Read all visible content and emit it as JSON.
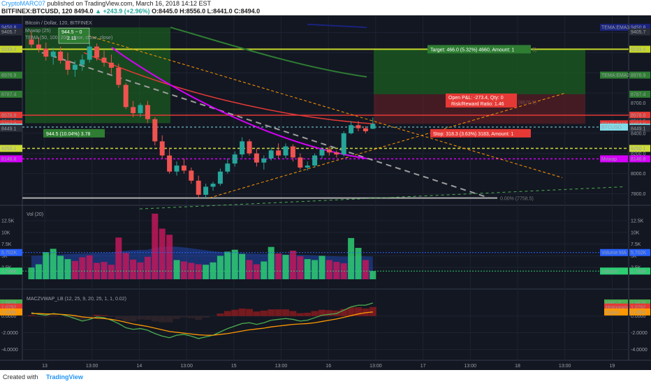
{
  "header": {
    "author": "CryptoMARC07",
    "published": " published on TradingView.com, March 16, 2018 14:12 EST",
    "symbol": "BITFINEX:BTCUSD, 120",
    "last": "8494.0",
    "change": "▲ +243.9 (+2.96%)",
    "ohlc": "O:8445.0 H:8556.0 L:8441.0 C:8494.0"
  },
  "footer": {
    "created": "Created with",
    "brand": "TradingView"
  },
  "price_pane": {
    "title": "Bitcoin / Dollar, 120, BITFINEX",
    "indicator1": "Mvwap (25)",
    "indicator2": "TEMA (50, 100, 200, close, close, close)",
    "measure_top": "944.5 − 0",
    "measure_top_sub": "2.11",
    "measure_bottom": "944.5 (10.04%) 3.78",
    "target_label": "Target: 466.0 (5.32%) 4660, Amount: 1",
    "target_tail": "5)",
    "open_pnl": "Open P&L: -273.4, Qty: 0",
    "risk_reward": "Risk/Reward Ratio: 1.46",
    "stop_label": "Stop: 318.3 (3.63%) 3183, Amount: 1",
    "fib_label": "0.00% (7758.5)",
    "faint_label": "(8676.5)"
  },
  "vol_pane": {
    "title": "Vol (20)"
  },
  "macz_pane": {
    "title": "MACZVWAP_LB (12, 25, 9, 20, 25, 1, 1, 0.02)"
  },
  "right_labels": {
    "tema3": "TEMA:EMA3",
    "tema2": "TEMA:EMA2",
    "tema1": "TEMA:EMA",
    "btcusd": "BTCUSD",
    "mvwap": "Mvwap",
    "volume_ma": "Volume MA",
    "volume": "Volume",
    "macz": "MAC-Z",
    "hist": "Histogram",
    "signal": "Signal"
  },
  "colors": {
    "background": "#131722",
    "up": "#26a69a",
    "down": "#ef5350",
    "target_zone": "#1b5e20",
    "stop_zone": "#6d1f25",
    "mvwap": "#d500f9",
    "tema1": "#e53935",
    "tema2": "#2e7d32",
    "tema3": "#1a237e",
    "vol_up": "#2ecc71",
    "vol_down": "#c2185b",
    "vol_ma": "#2962ff"
  },
  "chart_data": [
    {
      "type": "candlestick",
      "title": "Bitcoin / Dollar, 120, BITFINEX",
      "xlabel": "",
      "ylabel": "",
      "x_ticks": [
        "13",
        "13:00",
        "14",
        "13:00",
        "15",
        "13:00",
        "16",
        "13:00",
        "17",
        "13:00",
        "18",
        "13:00",
        "19"
      ],
      "y_ticks": [
        7800,
        8000,
        8200,
        8400,
        8600,
        8800,
        9000,
        9200,
        9400
      ],
      "ylim": [
        7700,
        9500
      ],
      "price_labels": [
        "9450.8",
        "9405.7",
        "9233.4",
        "8976.9",
        "8787.4",
        "8700.0",
        "8578.8",
        "8516.5",
        "8494.0",
        "8461.2",
        "8449.1",
        "8400.0",
        "8250.1",
        "8200.0",
        "8146.8",
        "8000.0",
        "7800.0"
      ],
      "candles": [
        [
          9330,
          9410,
          9250,
          9280
        ],
        [
          9280,
          9350,
          9200,
          9240
        ],
        [
          9240,
          9300,
          9120,
          9160
        ],
        [
          9160,
          9250,
          9080,
          9210
        ],
        [
          9210,
          9260,
          9090,
          9120
        ],
        [
          9120,
          9200,
          8980,
          9030
        ],
        [
          9030,
          9120,
          8960,
          9080
        ],
        [
          9080,
          9180,
          9020,
          9130
        ],
        [
          9130,
          9300,
          9100,
          9260
        ],
        [
          9260,
          9290,
          9120,
          9150
        ],
        [
          9150,
          9220,
          9060,
          9100
        ],
        [
          9100,
          9180,
          8990,
          9050
        ],
        [
          9050,
          9090,
          8850,
          8880
        ],
        [
          8880,
          8900,
          8640,
          8660
        ],
        [
          8660,
          8720,
          8560,
          8600
        ],
        [
          8600,
          8700,
          8560,
          8680
        ],
        [
          8680,
          8720,
          8500,
          8540
        ],
        [
          8540,
          8560,
          8280,
          8320
        ],
        [
          8320,
          8380,
          8150,
          8180
        ],
        [
          8180,
          8250,
          8000,
          8020
        ],
        [
          8020,
          8120,
          7980,
          8080
        ],
        [
          8080,
          8150,
          8000,
          8030
        ],
        [
          8030,
          8060,
          7900,
          7930
        ],
        [
          7930,
          7980,
          7760,
          7790
        ],
        [
          7790,
          7900,
          7760,
          7870
        ],
        [
          7870,
          7920,
          7830,
          7900
        ],
        [
          7900,
          8050,
          7880,
          8020
        ],
        [
          8020,
          8150,
          8000,
          8100
        ],
        [
          8100,
          8220,
          8070,
          8190
        ],
        [
          8190,
          8360,
          8160,
          8320
        ],
        [
          8320,
          8340,
          8180,
          8200
        ],
        [
          8200,
          8250,
          8070,
          8110
        ],
        [
          8110,
          8180,
          8040,
          8150
        ],
        [
          8150,
          8260,
          8130,
          8230
        ],
        [
          8230,
          8300,
          8150,
          8180
        ],
        [
          8180,
          8300,
          8150,
          8270
        ],
        [
          8270,
          8290,
          8120,
          8160
        ],
        [
          8160,
          8200,
          8040,
          8060
        ],
        [
          8060,
          8120,
          8030,
          8080
        ],
        [
          8080,
          8200,
          8060,
          8180
        ],
        [
          8180,
          8260,
          8150,
          8240
        ],
        [
          8240,
          8270,
          8180,
          8210
        ],
        [
          8210,
          8230,
          8160,
          8190
        ],
        [
          8190,
          8420,
          8170,
          8400
        ],
        [
          8400,
          8520,
          8390,
          8480
        ],
        [
          8480,
          8520,
          8420,
          8450
        ],
        [
          8450,
          8470,
          8400,
          8420
        ],
        [
          8445,
          8556,
          8441,
          8494
        ]
      ]
    },
    {
      "type": "bar",
      "title": "Vol (20)",
      "y_ticks": [
        "2.5K",
        "5K",
        "7.5K",
        "10K",
        "12.5K"
      ],
      "ylim": [
        0,
        14000
      ],
      "price_labels": [
        "5.702K",
        "1.748K"
      ],
      "values": [
        2500,
        3200,
        5800,
        6500,
        5000,
        4300,
        3900,
        4700,
        5100,
        3500,
        3700,
        3100,
        8900,
        5600,
        4200,
        3600,
        4800,
        14000,
        10800,
        9500,
        4100,
        3800,
        3500,
        3200,
        3100,
        3600,
        5000,
        5900,
        6300,
        5400,
        4100,
        3200,
        3800,
        6900,
        5500,
        5200,
        6100,
        4900,
        4300,
        4100,
        5000,
        4100,
        3700,
        3400,
        8800,
        6700,
        4100,
        1748
      ],
      "up": [
        true,
        true,
        true,
        true,
        true,
        true,
        false,
        false,
        false,
        false,
        false,
        false,
        false,
        false,
        false,
        false,
        false,
        false,
        false,
        false,
        true,
        false,
        false,
        false,
        true,
        true,
        true,
        true,
        true,
        true,
        false,
        false,
        true,
        true,
        false,
        true,
        false,
        false,
        true,
        true,
        true,
        false,
        false,
        false,
        true,
        true,
        false,
        true
      ],
      "ma": [
        5000,
        5050,
        5100,
        5200,
        5300,
        5400,
        5450,
        5500,
        5550,
        5600,
        5650,
        5700,
        5900,
        6100,
        6200,
        6250,
        6300,
        6700,
        6900,
        7000,
        6950,
        6800,
        6600,
        6400,
        6200,
        6000,
        5850,
        5750,
        5650,
        5550,
        5500,
        5450,
        5400,
        5400,
        5350,
        5300,
        5250,
        5200,
        5150,
        5100,
        5000,
        4950,
        4900,
        4850,
        4900,
        4950,
        4900,
        4850
      ]
    },
    {
      "type": "line",
      "title": "MACZVWAP_LB (12, 25, 9, 20, 25, 1, 1, 0.02)",
      "y_ticks": [
        -4.0,
        -2.0,
        0.0
      ],
      "ylim": [
        -4.8,
        2.4
      ],
      "price_labels": [
        "1.5676",
        "1.0792",
        "0.4884"
      ],
      "series": [
        {
          "name": "MAC-Z",
          "values": [
            0.4,
            0.2,
            0.1,
            0.3,
            0.2,
            0.0,
            -0.3,
            -0.6,
            -0.4,
            -0.1,
            -0.2,
            -0.5,
            -0.9,
            -1.4,
            -1.6,
            -1.5,
            -1.7,
            -2.1,
            -2.4,
            -2.6,
            -2.3,
            -2.2,
            -2.4,
            -2.7,
            -2.5,
            -2.3,
            -1.9,
            -1.5,
            -1.2,
            -0.9,
            -0.8,
            -1.0,
            -0.8,
            -0.5,
            -0.4,
            -0.3,
            -0.4,
            -0.6,
            -0.5,
            -0.2,
            0.1,
            0.2,
            0.3,
            0.7,
            1.1,
            1.3,
            1.3,
            1.5676
          ]
        },
        {
          "name": "Signal",
          "values": [
            0.3,
            0.3,
            0.25,
            0.25,
            0.2,
            0.15,
            0.05,
            -0.1,
            -0.2,
            -0.25,
            -0.3,
            -0.4,
            -0.55,
            -0.75,
            -0.95,
            -1.1,
            -1.25,
            -1.45,
            -1.65,
            -1.85,
            -1.95,
            -2.05,
            -2.15,
            -2.25,
            -2.3,
            -2.3,
            -2.2,
            -2.1,
            -1.95,
            -1.8,
            -1.65,
            -1.55,
            -1.45,
            -1.3,
            -1.2,
            -1.1,
            -1.0,
            -0.95,
            -0.9,
            -0.8,
            -0.65,
            -0.5,
            -0.35,
            -0.15,
            0.05,
            0.25,
            0.4,
            0.4884
          ]
        },
        {
          "name": "Histogram",
          "values": [
            0.1,
            -0.1,
            -0.15,
            0.05,
            0.0,
            -0.15,
            -0.35,
            -0.5,
            -0.2,
            0.15,
            0.1,
            -0.1,
            -0.35,
            -0.65,
            -0.65,
            -0.4,
            -0.45,
            -0.65,
            -0.75,
            -0.75,
            -0.35,
            -0.15,
            -0.25,
            -0.45,
            -0.2,
            0.0,
            0.3,
            0.6,
            0.75,
            0.9,
            0.85,
            0.55,
            0.65,
            0.8,
            0.8,
            0.8,
            0.6,
            0.35,
            0.4,
            0.6,
            0.75,
            0.7,
            0.65,
            0.85,
            1.05,
            1.05,
            0.9,
            1.0792
          ]
        }
      ]
    }
  ]
}
